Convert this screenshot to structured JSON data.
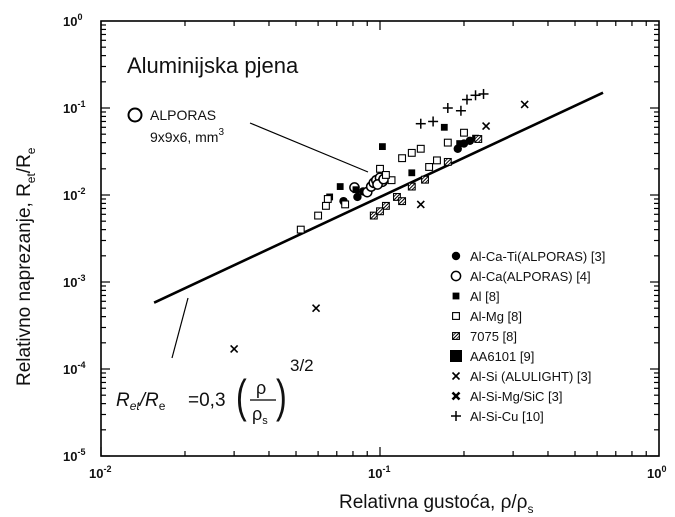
{
  "chart_data": {
    "type": "scatter",
    "xscale": "log",
    "yscale": "log",
    "xlim": [
      0.01,
      1
    ],
    "ylim": [
      1e-05,
      1
    ],
    "x_ticks": [
      {
        "value": 0.01,
        "base": "10",
        "exp": "-2"
      },
      {
        "value": 0.1,
        "base": "10",
        "exp": "-1"
      },
      {
        "value": 1,
        "base": "10",
        "exp": "0"
      }
    ],
    "y_ticks": [
      {
        "value": 1,
        "base": "10",
        "exp": "0"
      },
      {
        "value": 0.1,
        "base": "10",
        "exp": "-1"
      },
      {
        "value": 0.01,
        "base": "10",
        "exp": "-2"
      },
      {
        "value": 0.001,
        "base": "10",
        "exp": "-3"
      },
      {
        "value": 0.0001,
        "base": "10",
        "exp": "-4"
      },
      {
        "value": 1e-05,
        "base": "10",
        "exp": "-5"
      }
    ],
    "xlabel": {
      "text": "Relativna gustoća, ρ/ρ",
      "sub": "s"
    },
    "ylabel": {
      "text": "Relativno naprezanje, R",
      "sub1": "et",
      "mid": "/R",
      "sub2": "e"
    },
    "inner_title": "Aluminijska pjena",
    "annotation": {
      "label": "ALPORAS",
      "dims": "9x9x6,  mm",
      "sup": "3"
    },
    "formula": {
      "lhs_a": "R",
      "lhs_a_sub": "et",
      "lhs_b": "/R",
      "lhs_b_sub": "e",
      "rhs": "=0,3",
      "num": "ρ",
      "den": "ρ",
      "den_sub": "s",
      "exponent": "3/2"
    },
    "model_line": {
      "coefficient": 0.3,
      "exponent": 1.5,
      "x_range": [
        0.0155,
        0.63
      ]
    },
    "series": [
      {
        "name": "Al-Ca-Ti(ALPORAS) [3]",
        "marker": "filled-circle",
        "points": [
          [
            0.074,
            0.0085
          ],
          [
            0.083,
            0.0095
          ],
          [
            0.087,
            0.011
          ],
          [
            0.19,
            0.034
          ],
          [
            0.2,
            0.039
          ],
          [
            0.21,
            0.042
          ]
        ]
      },
      {
        "name": "Al-Ca(ALPORAS) [4]",
        "marker": "open-circle",
        "points": [
          [
            0.09,
            0.0108
          ],
          [
            0.093,
            0.0125
          ],
          [
            0.095,
            0.0138
          ],
          [
            0.097,
            0.0148
          ],
          [
            0.1,
            0.0158
          ],
          [
            0.102,
            0.0142
          ],
          [
            0.098,
            0.0132
          ],
          [
            0.081,
            0.0122
          ],
          [
            0.103,
            0.0152
          ]
        ]
      },
      {
        "name": "Al [8]",
        "marker": "filled-square",
        "points": [
          [
            0.072,
            0.0125
          ],
          [
            0.082,
            0.0115
          ],
          [
            0.066,
            0.0095
          ],
          [
            0.102,
            0.036
          ],
          [
            0.17,
            0.06
          ],
          [
            0.193,
            0.039
          ],
          [
            0.22,
            0.045
          ],
          [
            0.13,
            0.018
          ]
        ]
      },
      {
        "name": "Al-Mg [8]",
        "marker": "open-square",
        "points": [
          [
            0.052,
            0.004
          ],
          [
            0.06,
            0.0058
          ],
          [
            0.064,
            0.0075
          ],
          [
            0.075,
            0.0078
          ],
          [
            0.1,
            0.02
          ],
          [
            0.11,
            0.0148
          ],
          [
            0.12,
            0.0265
          ],
          [
            0.13,
            0.0305
          ],
          [
            0.14,
            0.034
          ],
          [
            0.15,
            0.021
          ],
          [
            0.16,
            0.025
          ],
          [
            0.175,
            0.04
          ],
          [
            0.2,
            0.052
          ],
          [
            0.105,
            0.017
          ],
          [
            0.065,
            0.009
          ]
        ]
      },
      {
        "name": "7075 [8]",
        "marker": "hatched-square",
        "points": [
          [
            0.095,
            0.0058
          ],
          [
            0.105,
            0.0075
          ],
          [
            0.115,
            0.0095
          ],
          [
            0.13,
            0.0125
          ],
          [
            0.145,
            0.015
          ],
          [
            0.175,
            0.024
          ],
          [
            0.225,
            0.044
          ],
          [
            0.1,
            0.0065
          ],
          [
            0.12,
            0.0085
          ]
        ]
      },
      {
        "name": "AA6101 [9]",
        "marker": "big-filled-square",
        "points": []
      },
      {
        "name": "Al-Si (ALULIGHT) [3]",
        "marker": "x",
        "points": [
          [
            0.059,
            0.0005
          ],
          [
            0.03,
            0.00017
          ],
          [
            0.14,
            0.0078
          ],
          [
            0.24,
            0.062
          ],
          [
            0.33,
            0.11
          ]
        ]
      },
      {
        "name": "Al-Si-Mg/SiC [3]",
        "marker": "bold-x",
        "points": []
      },
      {
        "name": "Al-Si-Cu [10]",
        "marker": "plus",
        "points": [
          [
            0.14,
            0.066
          ],
          [
            0.155,
            0.07
          ],
          [
            0.175,
            0.1
          ],
          [
            0.195,
            0.093
          ],
          [
            0.205,
            0.125
          ],
          [
            0.22,
            0.14
          ],
          [
            0.235,
            0.145
          ]
        ]
      }
    ]
  }
}
